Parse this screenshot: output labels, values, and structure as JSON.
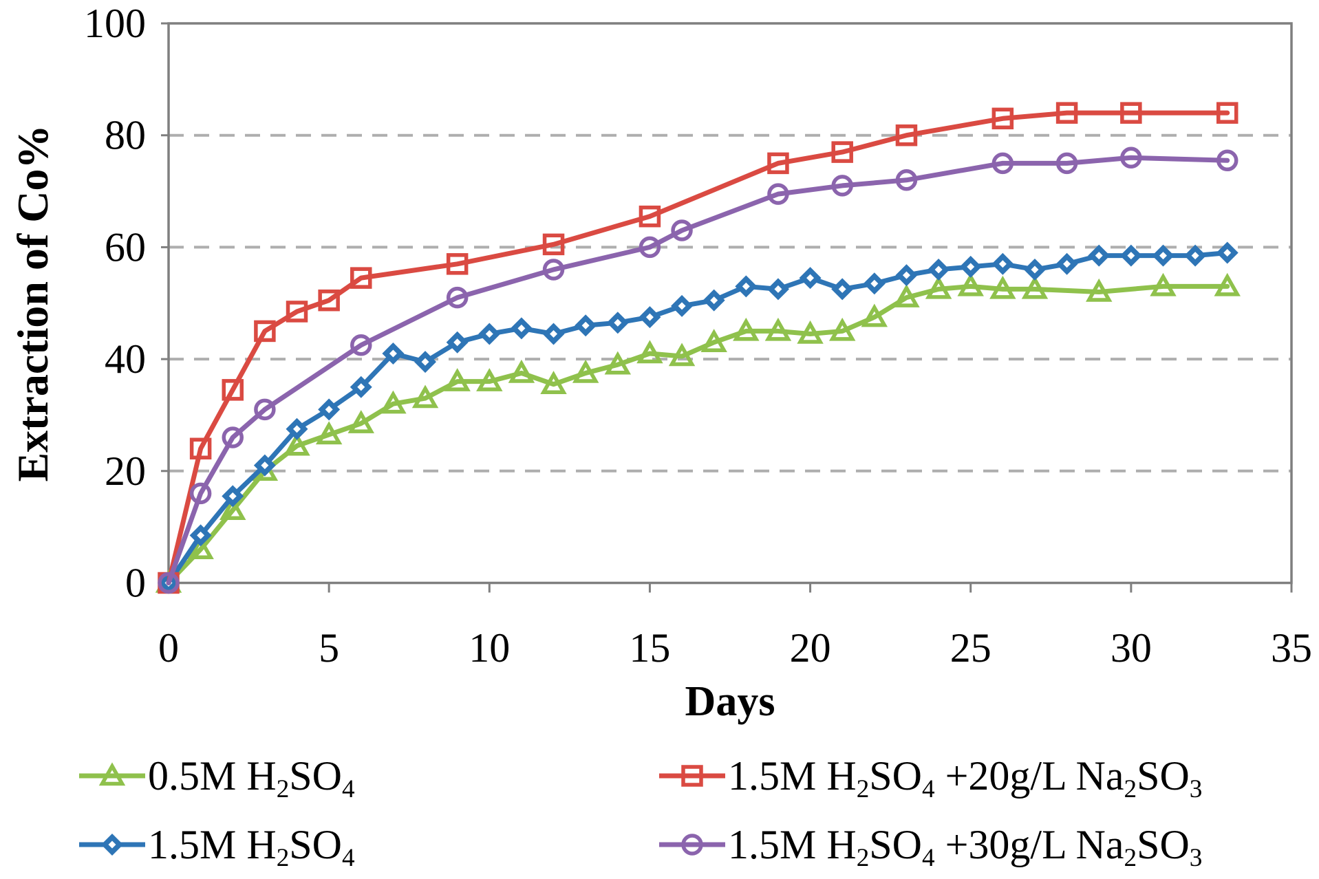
{
  "chart_data": {
    "type": "line",
    "title": "",
    "xlabel": "Days",
    "ylabel": "Extraction of Co%",
    "xlim": [
      0,
      35
    ],
    "ylim": [
      0,
      100
    ],
    "xticks": [
      0,
      5,
      10,
      15,
      20,
      25,
      30,
      35
    ],
    "yticks": [
      0,
      20,
      40,
      60,
      80,
      100
    ],
    "grid": {
      "horizontal_dashed_at": [
        20,
        40,
        60,
        80
      ],
      "color": "#AEAEAE",
      "dash": "22 15"
    },
    "frame_color": "#7F7F7F",
    "background": "#FFFFFF",
    "legend_position": "bottom-two-columns",
    "series": [
      {
        "name": "0.5M H2SO4",
        "label_parts": [
          {
            "t": "0.5M H"
          },
          {
            "t": "2",
            "sub": true
          },
          {
            "t": "SO"
          },
          {
            "t": "4",
            "sub": true
          }
        ],
        "color": "#8FC14C",
        "marker": "triangle-open",
        "x": [
          0,
          1,
          2,
          3,
          4,
          5,
          6,
          7,
          8,
          9,
          10,
          11,
          12,
          13,
          14,
          15,
          16,
          17,
          18,
          19,
          20,
          21,
          22,
          23,
          24,
          25,
          26,
          27,
          29,
          31,
          33
        ],
        "y": [
          0,
          6,
          13,
          20,
          24.5,
          26.5,
          28.5,
          32,
          33,
          36,
          36,
          37.5,
          35.5,
          37.5,
          39,
          41,
          40.5,
          43,
          45,
          45,
          44.5,
          45,
          47.5,
          51,
          52.5,
          53,
          52.5,
          52.5,
          52,
          53,
          53
        ]
      },
      {
        "name": "1.5M H2SO4",
        "label_parts": [
          {
            "t": "1.5M H"
          },
          {
            "t": "2",
            "sub": true
          },
          {
            "t": "SO"
          },
          {
            "t": "4",
            "sub": true
          }
        ],
        "color": "#2E75B6",
        "marker": "diamond-solid",
        "x": [
          0,
          1,
          2,
          3,
          4,
          5,
          6,
          7,
          8,
          9,
          10,
          11,
          12,
          13,
          14,
          15,
          16,
          17,
          18,
          19,
          20,
          21,
          22,
          23,
          24,
          25,
          26,
          27,
          28,
          29,
          30,
          31,
          32,
          33
        ],
        "y": [
          0,
          8.5,
          15.5,
          21,
          27.5,
          31,
          35,
          41,
          39.5,
          43,
          44.5,
          45.5,
          44.5,
          46,
          46.5,
          47.5,
          49.5,
          50.5,
          53,
          52.5,
          54.5,
          52.5,
          53.5,
          55,
          56,
          56.5,
          57,
          56,
          57,
          58.5,
          58.5,
          58.5,
          58.5,
          59
        ]
      },
      {
        "name": "1.5M H2SO4 +20g/L Na2SO3",
        "label_parts": [
          {
            "t": "1.5M H"
          },
          {
            "t": "2",
            "sub": true
          },
          {
            "t": "SO"
          },
          {
            "t": "4",
            "sub": true
          },
          {
            "t": " +20g/L Na"
          },
          {
            "t": "2",
            "sub": true
          },
          {
            "t": "SO"
          },
          {
            "t": "3",
            "sub": true
          }
        ],
        "color": "#DA4A42",
        "marker": "square-open",
        "x": [
          0,
          1,
          2,
          3,
          4,
          5,
          6,
          9,
          12,
          15,
          19,
          21,
          23,
          26,
          28,
          30,
          33
        ],
        "y": [
          0,
          24,
          34.5,
          45,
          48.5,
          50.5,
          54.5,
          57,
          60.5,
          65.5,
          75,
          77,
          80,
          83,
          84,
          84,
          84
        ]
      },
      {
        "name": "1.5M H2SO4 +30g/L Na2SO3",
        "label_parts": [
          {
            "t": "1.5M H"
          },
          {
            "t": "2",
            "sub": true
          },
          {
            "t": "SO"
          },
          {
            "t": "4",
            "sub": true
          },
          {
            "t": " +30g/L Na"
          },
          {
            "t": "2",
            "sub": true
          },
          {
            "t": "SO"
          },
          {
            "t": "3",
            "sub": true
          }
        ],
        "color": "#8B64AD",
        "marker": "circle-open",
        "x": [
          0,
          1,
          2,
          3,
          6,
          9,
          12,
          15,
          16,
          19,
          21,
          23,
          26,
          28,
          30,
          33
        ],
        "y": [
          0,
          16,
          26,
          31,
          42.5,
          51,
          56,
          60,
          63,
          69.5,
          71,
          72,
          75,
          75,
          76,
          75.5
        ]
      }
    ]
  }
}
